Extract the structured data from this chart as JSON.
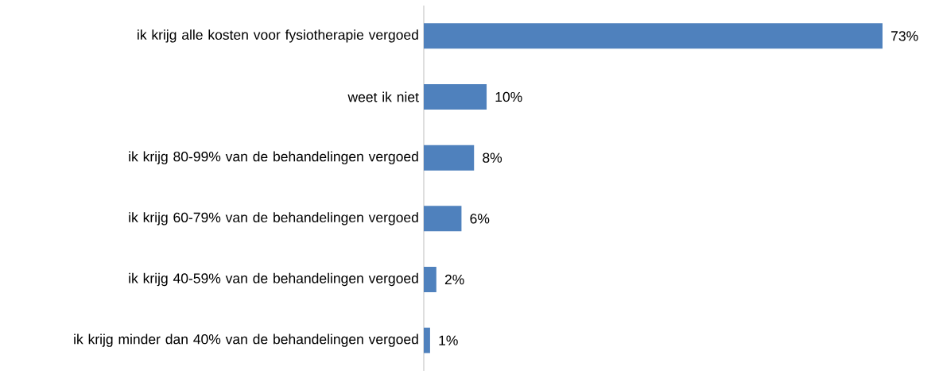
{
  "chart_data": {
    "type": "bar",
    "orientation": "horizontal",
    "categories": [
      "ik krijg alle kosten voor fysiotherapie vergoed",
      "weet ik niet",
      "ik krijg 80-99% van de behandelingen vergoed",
      "ik krijg 60-79% van de behandelingen vergoed",
      "ik krijg 40-59% van de behandelingen vergoed",
      "ik krijg minder dan 40% van de behandelingen vergoed"
    ],
    "values": [
      73,
      10,
      8,
      6,
      2,
      1
    ],
    "value_labels": [
      "73%",
      "10%",
      "8%",
      "6%",
      "2%",
      "1%"
    ],
    "color": "#4f81bd"
  }
}
